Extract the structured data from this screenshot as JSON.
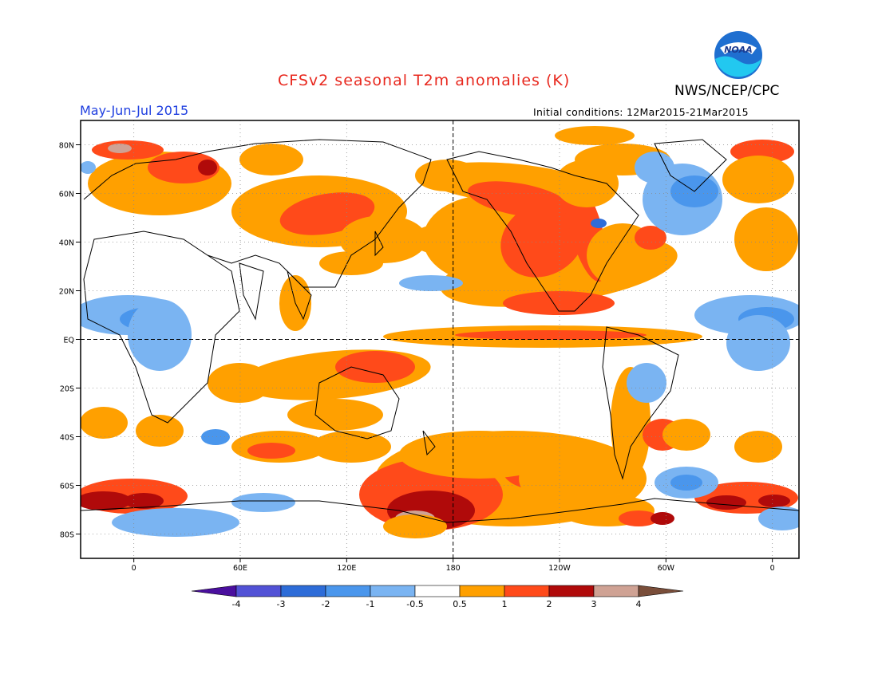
{
  "title": "CFSv2 seasonal T2m anomalies (K)",
  "organization": "NWS/NCEP/CPC",
  "logo_text": "NOAA",
  "season_label": "May-Jun-Jul 2015",
  "initial_conditions": "Initial conditions: 12Mar2015-21Mar2015",
  "map": {
    "projection": "equirectangular",
    "lon_range": [
      -30,
      375
    ],
    "lat_range": [
      -90,
      90
    ],
    "lat_ticks": [
      {
        "value": 80,
        "label": "80N"
      },
      {
        "value": 60,
        "label": "60N"
      },
      {
        "value": 40,
        "label": "40N"
      },
      {
        "value": 20,
        "label": "20N"
      },
      {
        "value": 0,
        "label": "EQ"
      },
      {
        "value": -20,
        "label": "20S"
      },
      {
        "value": -40,
        "label": "40S"
      },
      {
        "value": -60,
        "label": "60S"
      },
      {
        "value": -80,
        "label": "80S"
      }
    ],
    "lon_ticks": [
      {
        "value": 0,
        "label": "0"
      },
      {
        "value": 60,
        "label": "60E"
      },
      {
        "value": 120,
        "label": "120E"
      },
      {
        "value": 180,
        "label": "180"
      },
      {
        "value": 240,
        "label": "120W"
      },
      {
        "value": 300,
        "label": "60W"
      },
      {
        "value": 360,
        "label": "0"
      }
    ],
    "gridlines": "dotted",
    "reference_lines": [
      "equator",
      "dateline"
    ]
  },
  "colorbar": {
    "tick_labels": [
      "-4",
      "-3",
      "-2",
      "-1",
      "-0.5",
      "0.5",
      "1",
      "2",
      "3",
      "4"
    ],
    "colors": [
      "#4a0f9e",
      "#5252d6",
      "#2d6cd8",
      "#4a96ec",
      "#7ab4f2",
      "#ffffff",
      "#ffa000",
      "#ff4a1a",
      "#b00a0a",
      "#cfa294",
      "#7a4e3a"
    ]
  },
  "anomaly_colors": {
    "warm1": "#ffa000",
    "warm2": "#ff4a1a",
    "warm3": "#b00a0a",
    "warm4": "#cfa294",
    "cool1": "#7ab4f2",
    "cool2": "#4a96ec",
    "cool3": "#2d6cd8"
  }
}
